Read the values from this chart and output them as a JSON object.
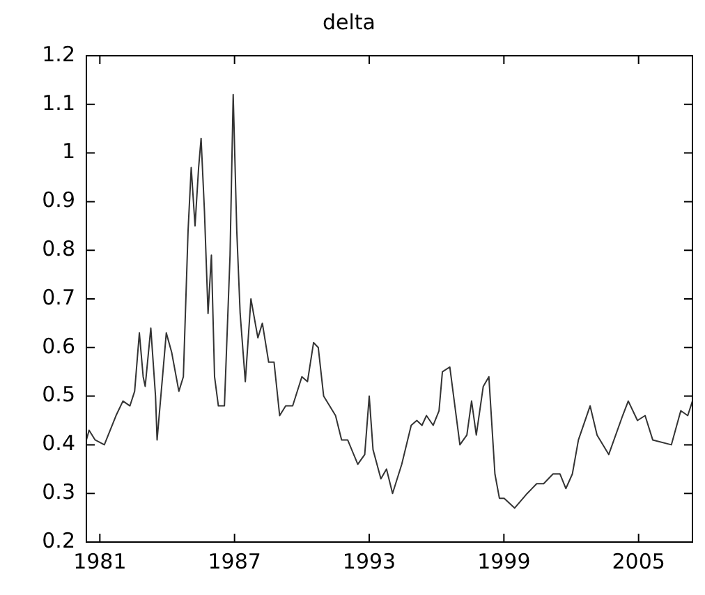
{
  "chart_data": {
    "type": "line",
    "title": "delta",
    "xlim": [
      1980.4,
      2007.4
    ],
    "xticks": [
      1981,
      1987,
      1993,
      1999,
      2005
    ],
    "ylim": [
      0.2,
      1.2
    ],
    "yticks": [
      0.2,
      0.3,
      0.4,
      0.5,
      0.6,
      0.7,
      0.8,
      0.9,
      1,
      1.1,
      1.2
    ],
    "grid": false,
    "legend": false,
    "marker": "none",
    "line_style": "solid",
    "series": [
      {
        "color": "#333333",
        "x": [
          1980.4,
          1980.52,
          1980.79,
          1981.2,
          1981.72,
          1982.03,
          1982.34,
          1982.55,
          1982.76,
          1982.93,
          1983.02,
          1983.27,
          1983.48,
          1983.55,
          1983.96,
          1984.2,
          1984.52,
          1984.72,
          1984.93,
          1985.07,
          1985.24,
          1985.4,
          1985.51,
          1985.66,
          1985.82,
          1985.97,
          1986.11,
          1986.28,
          1986.55,
          1986.8,
          1986.94,
          1987.1,
          1987.25,
          1987.48,
          1987.73,
          1988.04,
          1988.24,
          1988.52,
          1988.76,
          1989.01,
          1989.28,
          1989.59,
          1990.0,
          1990.25,
          1990.52,
          1990.73,
          1990.97,
          1991.5,
          1991.77,
          1992.04,
          1992.49,
          1992.8,
          1993.0,
          1993.17,
          1993.52,
          1993.77,
          1994.04,
          1994.45,
          1994.87,
          1995.12,
          1995.35,
          1995.55,
          1995.85,
          1996.11,
          1996.26,
          1996.59,
          1997.04,
          1997.35,
          1997.56,
          1997.77,
          1998.08,
          1998.33,
          1998.6,
          1998.8,
          1999.01,
          1999.48,
          2000.04,
          2000.46,
          2000.77,
          2001.19,
          2001.5,
          2001.76,
          2002.05,
          2002.32,
          2002.84,
          2003.15,
          2003.67,
          2004.29,
          2004.54,
          2004.95,
          2005.29,
          2005.63,
          2006.46,
          2006.88,
          2007.19,
          2007.4
        ],
        "values": [
          0.41,
          0.43,
          0.41,
          0.4,
          0.46,
          0.49,
          0.48,
          0.51,
          0.63,
          0.54,
          0.52,
          0.64,
          0.5,
          0.41,
          0.63,
          0.59,
          0.51,
          0.54,
          0.84,
          0.97,
          0.85,
          0.97,
          1.03,
          0.88,
          0.67,
          0.79,
          0.54,
          0.48,
          0.48,
          0.79,
          1.12,
          0.84,
          0.67,
          0.53,
          0.7,
          0.62,
          0.65,
          0.57,
          0.57,
          0.46,
          0.48,
          0.48,
          0.54,
          0.53,
          0.61,
          0.6,
          0.5,
          0.46,
          0.41,
          0.41,
          0.36,
          0.38,
          0.5,
          0.39,
          0.33,
          0.35,
          0.3,
          0.36,
          0.44,
          0.45,
          0.44,
          0.46,
          0.44,
          0.47,
          0.55,
          0.56,
          0.4,
          0.42,
          0.49,
          0.42,
          0.52,
          0.54,
          0.34,
          0.29,
          0.29,
          0.27,
          0.3,
          0.32,
          0.32,
          0.34,
          0.34,
          0.31,
          0.34,
          0.41,
          0.48,
          0.42,
          0.38,
          0.46,
          0.49,
          0.45,
          0.46,
          0.41,
          0.4,
          0.47,
          0.46,
          0.49
        ]
      }
    ]
  }
}
